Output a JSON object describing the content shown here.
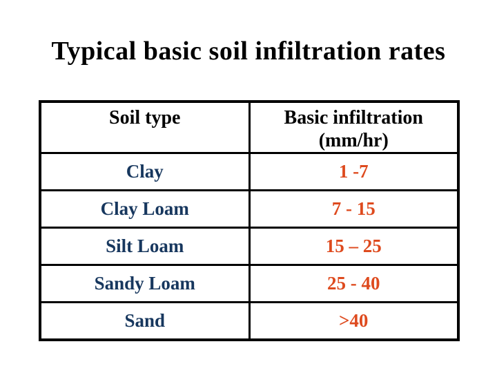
{
  "slide": {
    "title": "Typical basic soil infiltration rates"
  },
  "colors": {
    "background": "#FFFFFF",
    "title_text": "#000000",
    "header_text": "#000000",
    "table_border": "#000000",
    "soil_type_text": "#17375E",
    "value_text": "#DE4A1E"
  },
  "table": {
    "header": {
      "soil_type": "Soil type",
      "infiltration_line1": "Basic infiltration",
      "infiltration_line2": "(mm/hr)"
    },
    "rows": [
      {
        "soil_type": "Clay",
        "infiltration": "1 -7"
      },
      {
        "soil_type": "Clay Loam",
        "infiltration": "7 - 15"
      },
      {
        "soil_type": "Silt Loam",
        "infiltration": "15 – 25"
      },
      {
        "soil_type": "Sandy Loam",
        "infiltration": "25 - 40"
      },
      {
        "soil_type": "Sand",
        "infiltration": ">40"
      }
    ]
  },
  "chart_data": {
    "type": "table",
    "title": "Typical basic soil infiltration rates",
    "columns": [
      "Soil type",
      "Basic infiltration (mm/hr)"
    ],
    "rows": [
      [
        "Clay",
        "1 -7"
      ],
      [
        "Clay Loam",
        "7 - 15"
      ],
      [
        "Silt Loam",
        "15 – 25"
      ],
      [
        "Sandy Loam",
        "25 - 40"
      ],
      [
        "Sand",
        ">40"
      ]
    ]
  }
}
